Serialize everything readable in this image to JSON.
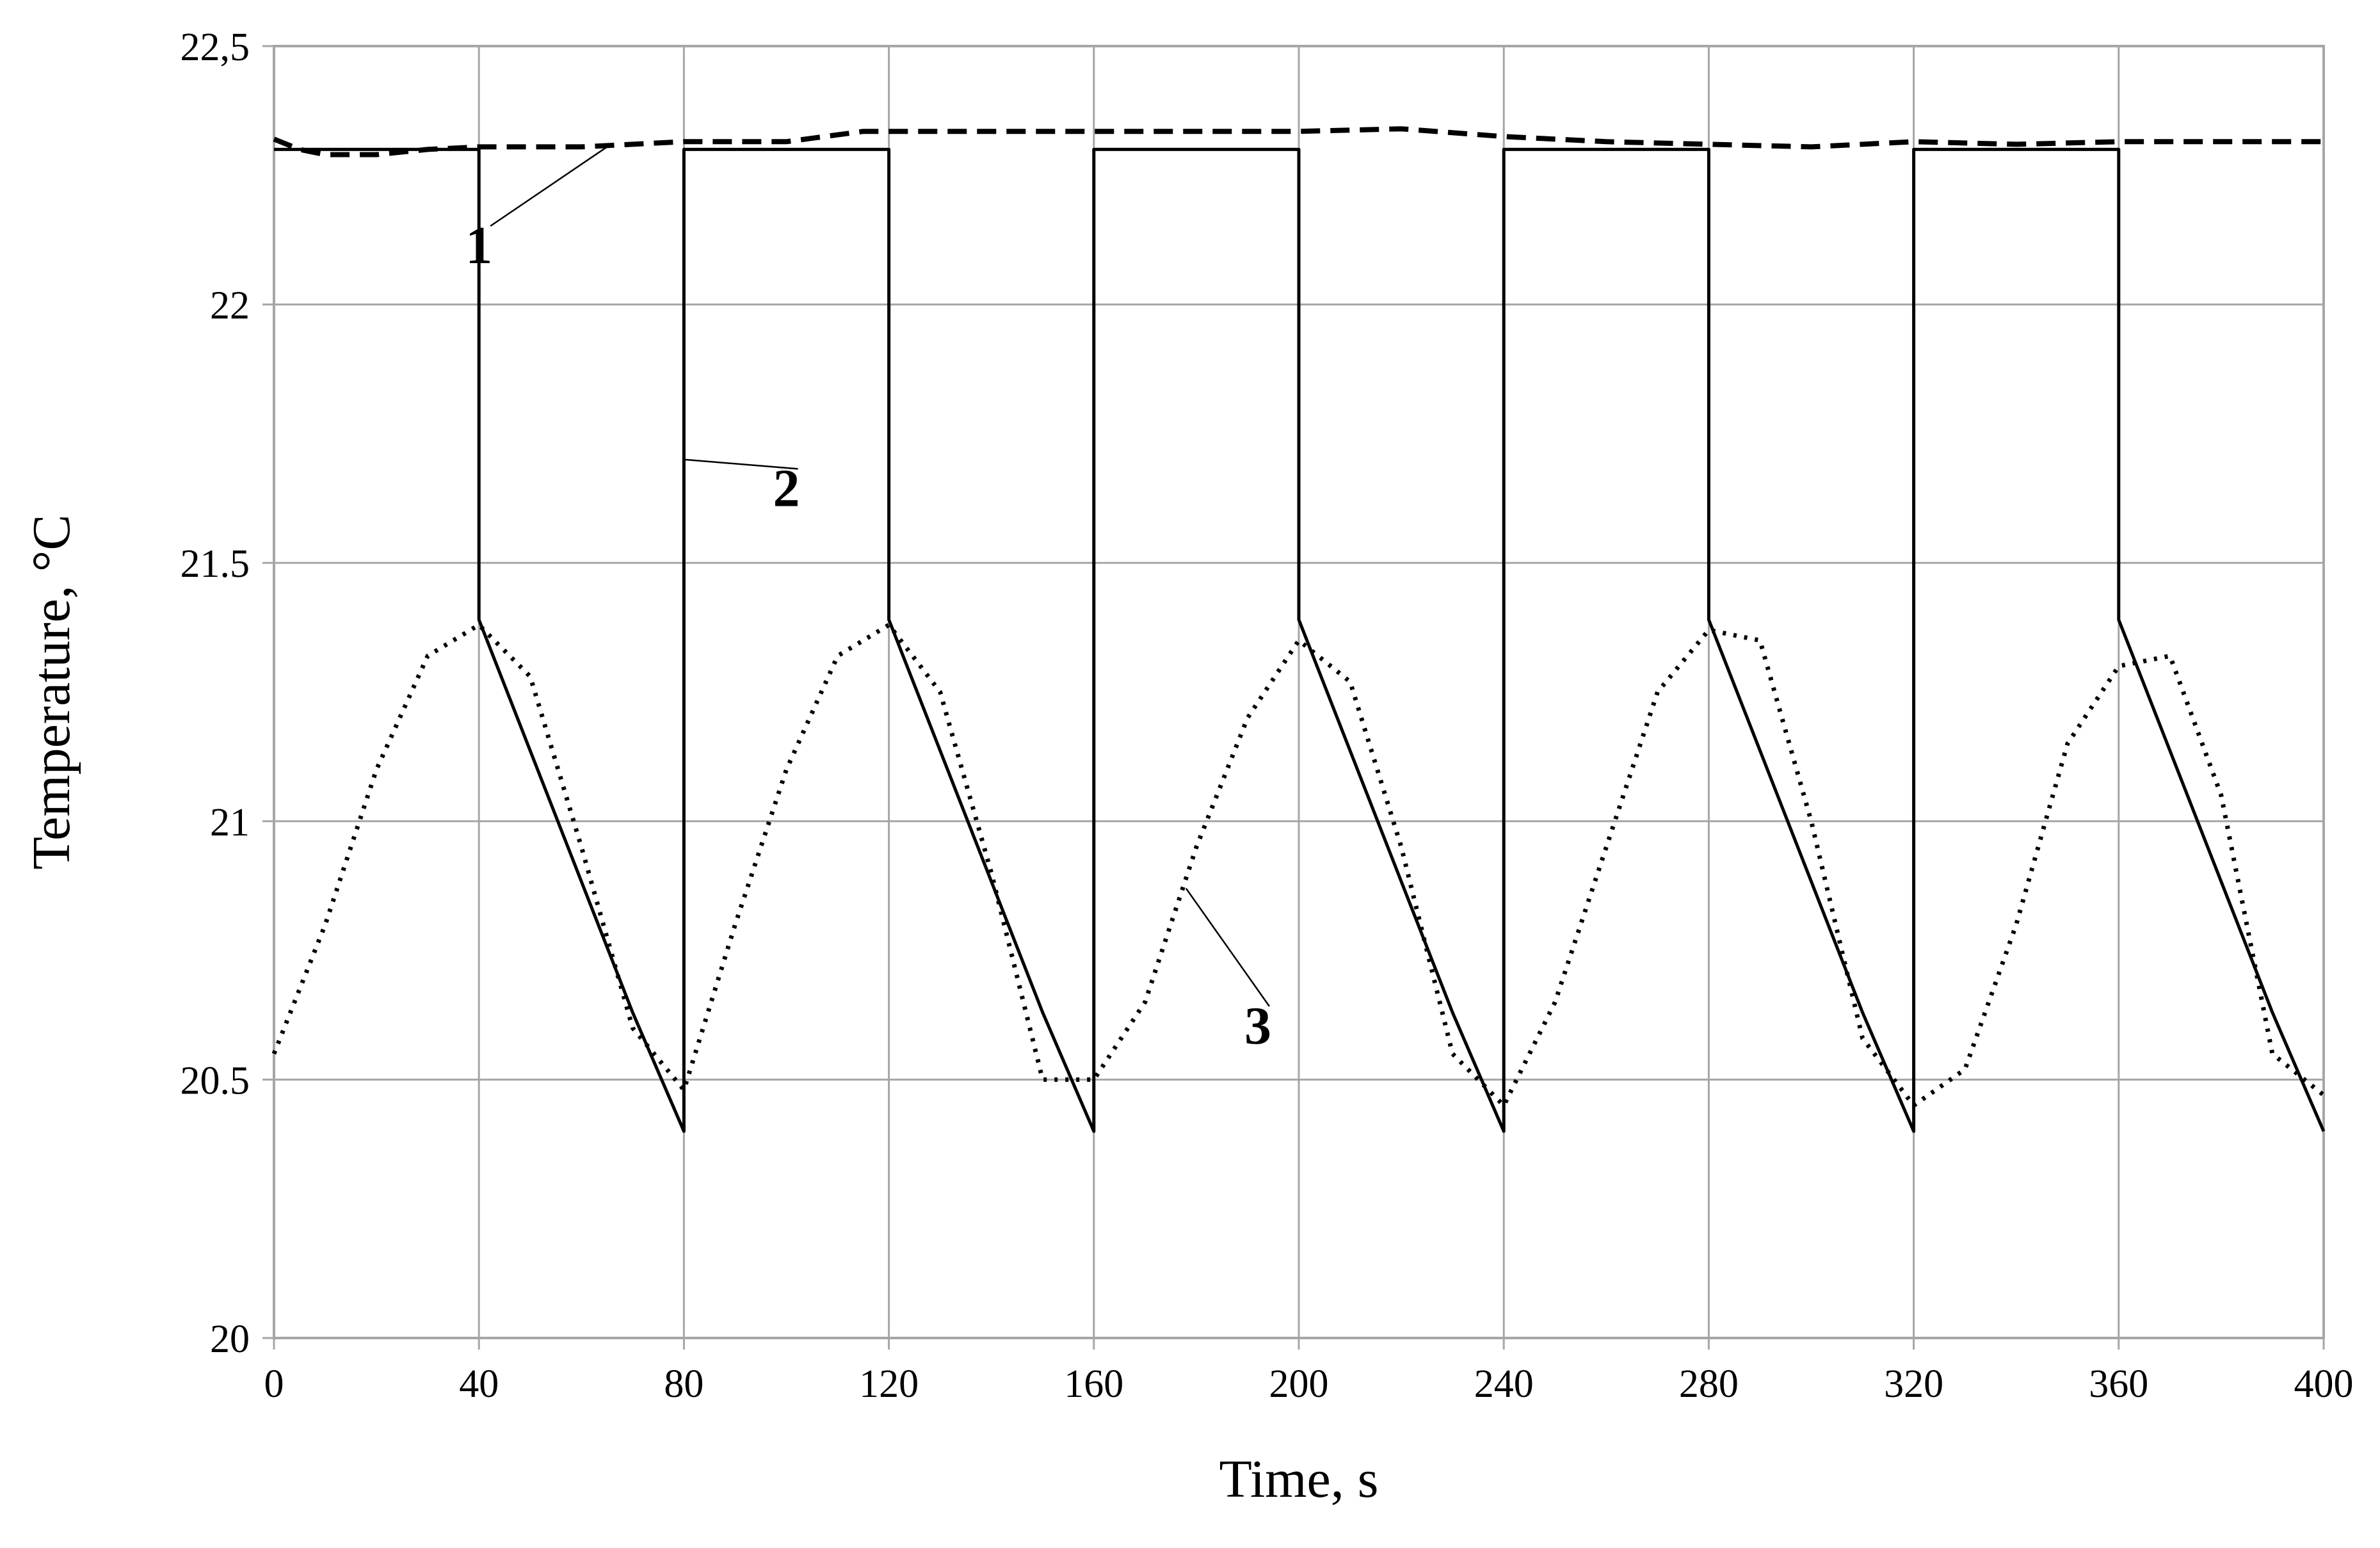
{
  "chart_data": {
    "type": "line",
    "xlabel": "Time, s",
    "ylabel": "Temperature, °C",
    "xlim": [
      0,
      400
    ],
    "ylim": [
      20,
      22.5
    ],
    "x_ticks": [
      "0",
      "40",
      "80",
      "120",
      "160",
      "200",
      "240",
      "280",
      "320",
      "360",
      "400"
    ],
    "y_ticks": [
      "20",
      "20.5",
      "21",
      "21.5",
      "22",
      "22,5"
    ],
    "grid": true,
    "series": [
      {
        "name": "1",
        "style": "dashed",
        "color": "#000000",
        "points": [
          [
            0,
            22.32
          ],
          [
            5,
            22.3
          ],
          [
            10,
            22.29
          ],
          [
            20,
            22.29
          ],
          [
            30,
            22.3
          ],
          [
            40,
            22.305
          ],
          [
            60,
            22.305
          ],
          [
            80,
            22.315
          ],
          [
            100,
            22.315
          ],
          [
            115,
            22.335
          ],
          [
            140,
            22.335
          ],
          [
            200,
            22.335
          ],
          [
            220,
            22.34
          ],
          [
            240,
            22.325
          ],
          [
            260,
            22.315
          ],
          [
            280,
            22.31
          ],
          [
            300,
            22.305
          ],
          [
            320,
            22.315
          ],
          [
            340,
            22.31
          ],
          [
            360,
            22.315
          ],
          [
            400,
            22.315
          ]
        ]
      },
      {
        "name": "2",
        "style": "solid",
        "color": "#000000",
        "points": [
          [
            0,
            22.3
          ],
          [
            40,
            22.3
          ],
          [
            40,
            21.39
          ],
          [
            70,
            20.63
          ],
          [
            80,
            20.4
          ],
          [
            80,
            22.3
          ],
          [
            120,
            22.3
          ],
          [
            120,
            21.39
          ],
          [
            150,
            20.63
          ],
          [
            160,
            20.4
          ],
          [
            160,
            22.3
          ],
          [
            200,
            22.3
          ],
          [
            200,
            21.39
          ],
          [
            230,
            20.63
          ],
          [
            240,
            20.4
          ],
          [
            240,
            22.3
          ],
          [
            280,
            22.3
          ],
          [
            280,
            21.39
          ],
          [
            310,
            20.63
          ],
          [
            320,
            20.4
          ],
          [
            320,
            22.3
          ],
          [
            360,
            22.3
          ],
          [
            360,
            21.39
          ],
          [
            390,
            20.63
          ],
          [
            400,
            20.4
          ]
        ]
      },
      {
        "name": "3",
        "style": "dotted",
        "color": "#000000",
        "points": [
          [
            0,
            20.55
          ],
          [
            10,
            20.8
          ],
          [
            20,
            21.1
          ],
          [
            30,
            21.32
          ],
          [
            40,
            21.38
          ],
          [
            50,
            21.28
          ],
          [
            60,
            20.95
          ],
          [
            70,
            20.6
          ],
          [
            80,
            20.48
          ],
          [
            90,
            20.8
          ],
          [
            100,
            21.1
          ],
          [
            110,
            21.32
          ],
          [
            120,
            21.38
          ],
          [
            130,
            21.25
          ],
          [
            140,
            20.9
          ],
          [
            150,
            20.5
          ],
          [
            160,
            20.5
          ],
          [
            170,
            20.65
          ],
          [
            180,
            20.95
          ],
          [
            190,
            21.2
          ],
          [
            200,
            21.35
          ],
          [
            210,
            21.27
          ],
          [
            220,
            20.95
          ],
          [
            230,
            20.55
          ],
          [
            240,
            20.45
          ],
          [
            250,
            20.65
          ],
          [
            260,
            20.95
          ],
          [
            270,
            21.25
          ],
          [
            280,
            21.37
          ],
          [
            290,
            21.35
          ],
          [
            300,
            21.0
          ],
          [
            310,
            20.58
          ],
          [
            320,
            20.45
          ],
          [
            330,
            20.52
          ],
          [
            340,
            20.8
          ],
          [
            350,
            21.15
          ],
          [
            360,
            21.3
          ],
          [
            370,
            21.32
          ],
          [
            380,
            21.05
          ],
          [
            390,
            20.55
          ],
          [
            400,
            20.47
          ]
        ]
      }
    ],
    "annotations": [
      {
        "text": "1",
        "series": "1",
        "x": 40,
        "y": 22.08,
        "target_x": 65,
        "target_y": 22.305
      },
      {
        "text": "2",
        "series": "2",
        "x": 100,
        "y": 21.61,
        "target_x": 80,
        "target_y": 21.7
      },
      {
        "text": "3",
        "series": "3",
        "x": 192,
        "y": 20.57,
        "target_x": 178,
        "target_y": 20.87
      }
    ]
  }
}
